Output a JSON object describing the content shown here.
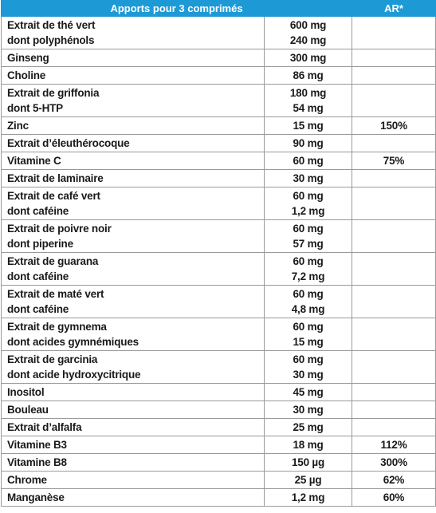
{
  "table": {
    "header": [
      "Apports pour 3 comprimés",
      "AR*"
    ],
    "rows": [
      {
        "name": [
          "Extrait de thé vert",
          "dont polyphénols"
        ],
        "amount": [
          "600 mg",
          "240 mg"
        ]
      },
      {
        "name": [
          "Ginseng"
        ],
        "amount": [
          "300 mg"
        ]
      },
      {
        "name": [
          "Choline"
        ],
        "amount": [
          "86 mg"
        ]
      },
      {
        "name": [
          "Extrait de griffonia",
          "dont 5-HTP"
        ],
        "amount": [
          "180 mg",
          "54 mg"
        ]
      },
      {
        "name": [
          "Zinc"
        ],
        "amount": [
          "15 mg"
        ],
        "ar": "150%"
      },
      {
        "name": [
          "Extrait d’éleuthérocoque"
        ],
        "amount": [
          "90 mg"
        ]
      },
      {
        "name": [
          "Vitamine C"
        ],
        "amount": [
          "60 mg"
        ],
        "ar": "75%"
      },
      {
        "name": [
          "Extrait de laminaire"
        ],
        "amount": [
          "30 mg"
        ]
      },
      {
        "name": [
          "Extrait de café vert",
          "dont caféine"
        ],
        "amount": [
          "60 mg",
          "1,2 mg"
        ]
      },
      {
        "name": [
          "Extrait de poivre noir",
          "dont piperine"
        ],
        "amount": [
          "60 mg",
          "57 mg"
        ]
      },
      {
        "name": [
          "Extrait de guarana",
          "dont caféine"
        ],
        "amount": [
          "60 mg",
          "7,2 mg"
        ]
      },
      {
        "name": [
          "Extrait de maté vert",
          "dont caféine"
        ],
        "amount": [
          "60 mg",
          "4,8 mg"
        ]
      },
      {
        "name": [
          "Extrait de gymnema",
          "dont acides gymnémiques"
        ],
        "amount": [
          "60 mg",
          "15 mg"
        ]
      },
      {
        "name": [
          "Extrait de garcinia",
          "dont acide hydroxycitrique"
        ],
        "amount": [
          "60 mg",
          "30 mg"
        ]
      },
      {
        "name": [
          "Inositol"
        ],
        "amount": [
          "45 mg"
        ]
      },
      {
        "name": [
          "Bouleau"
        ],
        "amount": [
          "30 mg"
        ]
      },
      {
        "name": [
          "Extrait d’alfalfa"
        ],
        "amount": [
          "25 mg"
        ]
      },
      {
        "name": [
          "Vitamine B3"
        ],
        "amount": [
          "18 mg"
        ],
        "ar": "112%"
      },
      {
        "name": [
          "Vitamine B8"
        ],
        "amount": [
          "150 µg"
        ],
        "ar": "300%"
      },
      {
        "name": [
          "Chrome"
        ],
        "amount": [
          "25 µg"
        ],
        "ar": "62%"
      },
      {
        "name": [
          "Manganèse"
        ],
        "amount": [
          "1,2 mg"
        ],
        "ar": "60%"
      }
    ]
  }
}
